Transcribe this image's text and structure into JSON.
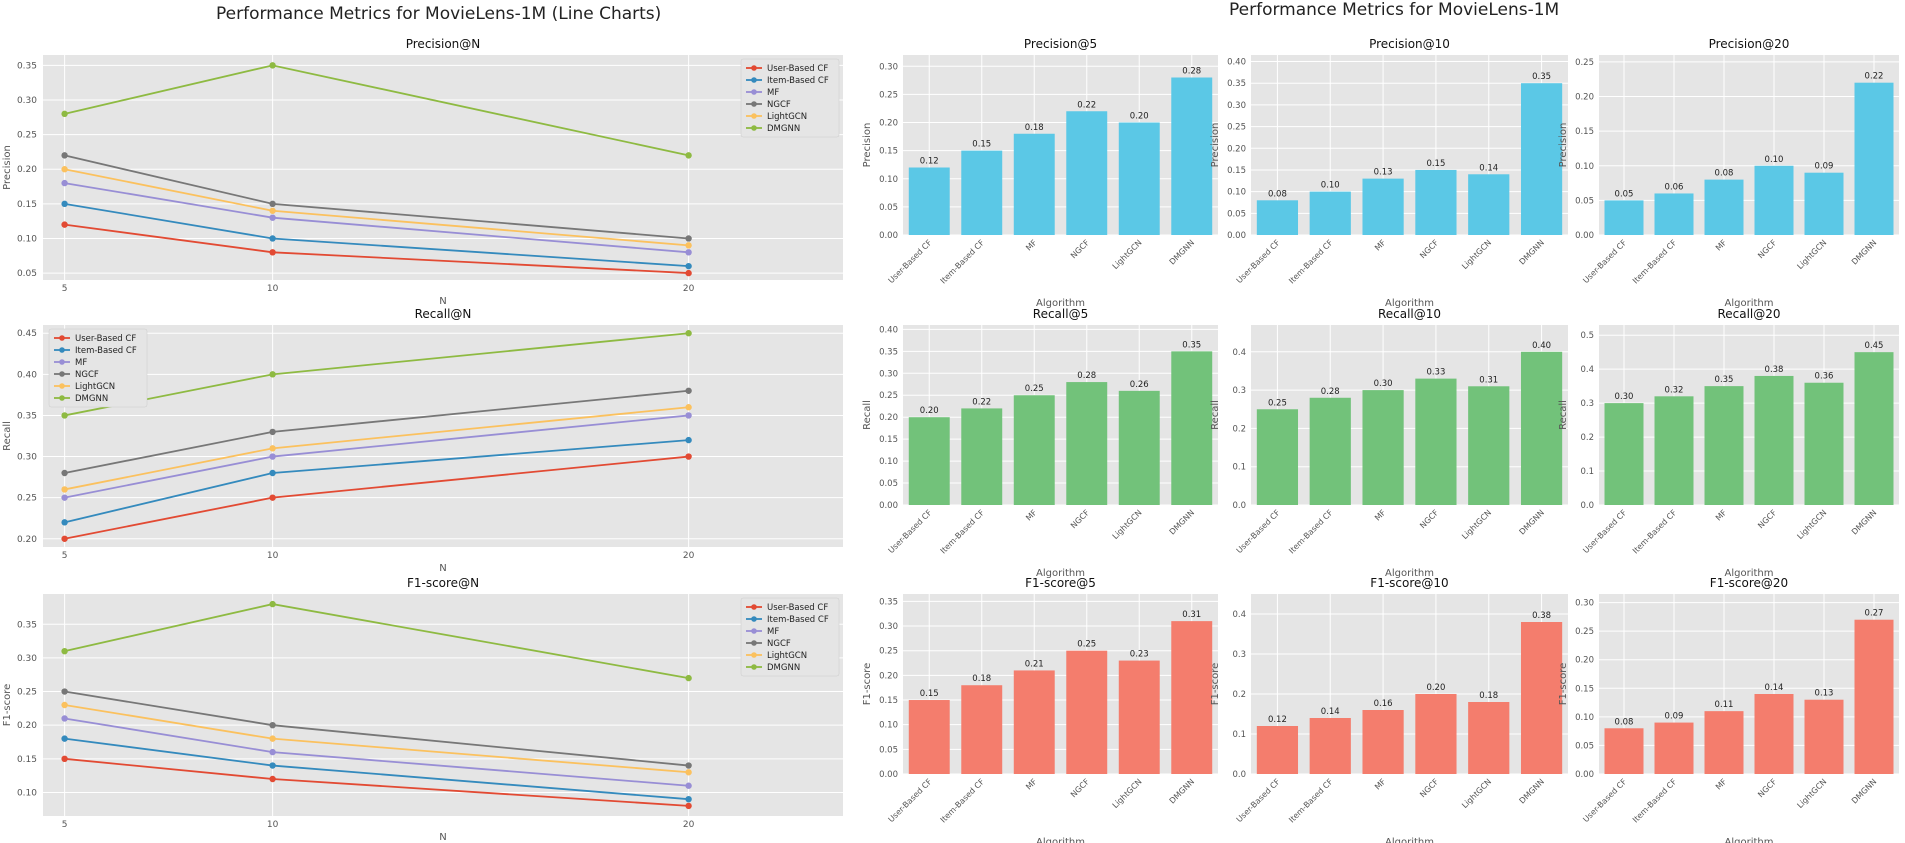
{
  "left_title": "Performance Metrics for MovieLens-1M (Line Charts)",
  "right_title": "Performance Metrics for MovieLens-1M",
  "chart_data": [
    {
      "type": "line",
      "title": "Precision@N",
      "xlabel": "N",
      "ylabel": "Precision",
      "x": [
        5,
        10,
        20
      ],
      "ylim": [
        0.04,
        0.365
      ],
      "yticks": [
        0.05,
        0.1,
        0.15,
        0.2,
        0.25,
        0.3,
        0.35
      ],
      "legend": "top-right",
      "series": [
        {
          "name": "User-Based CF",
          "color": "#E24A33",
          "values": [
            0.12,
            0.08,
            0.05
          ]
        },
        {
          "name": "Item-Based CF",
          "color": "#348ABD",
          "values": [
            0.15,
            0.1,
            0.06
          ]
        },
        {
          "name": "MF",
          "color": "#988ED5",
          "values": [
            0.18,
            0.13,
            0.08
          ]
        },
        {
          "name": "NGCF",
          "color": "#777777",
          "values": [
            0.22,
            0.15,
            0.1
          ]
        },
        {
          "name": "LightGCN",
          "color": "#FBC15E",
          "values": [
            0.2,
            0.14,
            0.09
          ]
        },
        {
          "name": "DMGNN",
          "color": "#8EBA42",
          "values": [
            0.28,
            0.35,
            0.22
          ]
        }
      ]
    },
    {
      "type": "line",
      "title": "Recall@N",
      "xlabel": "N",
      "ylabel": "Recall",
      "x": [
        5,
        10,
        20
      ],
      "ylim": [
        0.19,
        0.46
      ],
      "yticks": [
        0.2,
        0.25,
        0.3,
        0.35,
        0.4,
        0.45
      ],
      "legend": "top-left",
      "series": [
        {
          "name": "User-Based CF",
          "color": "#E24A33",
          "values": [
            0.2,
            0.25,
            0.3
          ]
        },
        {
          "name": "Item-Based CF",
          "color": "#348ABD",
          "values": [
            0.22,
            0.28,
            0.32
          ]
        },
        {
          "name": "MF",
          "color": "#988ED5",
          "values": [
            0.25,
            0.3,
            0.35
          ]
        },
        {
          "name": "NGCF",
          "color": "#777777",
          "values": [
            0.28,
            0.33,
            0.38
          ]
        },
        {
          "name": "LightGCN",
          "color": "#FBC15E",
          "values": [
            0.26,
            0.31,
            0.36
          ]
        },
        {
          "name": "DMGNN",
          "color": "#8EBA42",
          "values": [
            0.35,
            0.4,
            0.45
          ]
        }
      ]
    },
    {
      "type": "line",
      "title": "F1-score@N",
      "xlabel": "N",
      "ylabel": "F1-score",
      "x": [
        5,
        10,
        20
      ],
      "ylim": [
        0.065,
        0.395
      ],
      "yticks": [
        0.1,
        0.15,
        0.2,
        0.25,
        0.3,
        0.35
      ],
      "legend": "top-right",
      "series": [
        {
          "name": "User-Based CF",
          "color": "#E24A33",
          "values": [
            0.15,
            0.12,
            0.08
          ]
        },
        {
          "name": "Item-Based CF",
          "color": "#348ABD",
          "values": [
            0.18,
            0.14,
            0.09
          ]
        },
        {
          "name": "MF",
          "color": "#988ED5",
          "values": [
            0.21,
            0.16,
            0.11
          ]
        },
        {
          "name": "NGCF",
          "color": "#777777",
          "values": [
            0.25,
            0.2,
            0.14
          ]
        },
        {
          "name": "LightGCN",
          "color": "#FBC15E",
          "values": [
            0.23,
            0.18,
            0.13
          ]
        },
        {
          "name": "DMGNN",
          "color": "#8EBA42",
          "values": [
            0.31,
            0.38,
            0.27
          ]
        }
      ]
    },
    {
      "type": "bar",
      "title": "Precision@5",
      "xlabel": "Algorithm",
      "ylabel": "Precision",
      "color": "#5BC8E6",
      "categories": [
        "User-Based CF",
        "Item-Based CF",
        "MF",
        "NGCF",
        "LightGCN",
        "DMGNN"
      ],
      "values": [
        0.12,
        0.15,
        0.18,
        0.22,
        0.2,
        0.28
      ],
      "labels": [
        "0.12",
        "0.15",
        "0.18",
        "0.22",
        "0.20",
        "0.28"
      ],
      "ylim": [
        0,
        0.32
      ],
      "yticks": [
        0.0,
        0.05,
        0.1,
        0.15,
        0.2,
        0.25,
        0.3
      ],
      "tickdec": 2
    },
    {
      "type": "bar",
      "title": "Precision@10",
      "xlabel": "Algorithm",
      "ylabel": "Precision",
      "color": "#5BC8E6",
      "categories": [
        "User-Based CF",
        "Item-Based CF",
        "MF",
        "NGCF",
        "LightGCN",
        "DMGNN"
      ],
      "values": [
        0.08,
        0.1,
        0.13,
        0.15,
        0.14,
        0.35
      ],
      "labels": [
        "0.08",
        "0.10",
        "0.13",
        "0.15",
        "0.14",
        "0.35"
      ],
      "ylim": [
        0,
        0.415
      ],
      "yticks": [
        0.0,
        0.05,
        0.1,
        0.15,
        0.2,
        0.25,
        0.3,
        0.35,
        0.4
      ],
      "tickdec": 2
    },
    {
      "type": "bar",
      "title": "Precision@20",
      "xlabel": "Algorithm",
      "ylabel": "Precision",
      "color": "#5BC8E6",
      "categories": [
        "User-Based CF",
        "Item-Based CF",
        "MF",
        "NGCF",
        "LightGCN",
        "DMGNN"
      ],
      "values": [
        0.05,
        0.06,
        0.08,
        0.1,
        0.09,
        0.22
      ],
      "labels": [
        "0.05",
        "0.06",
        "0.08",
        "0.10",
        "0.09",
        "0.22"
      ],
      "ylim": [
        0,
        0.26
      ],
      "yticks": [
        0.0,
        0.05,
        0.1,
        0.15,
        0.2,
        0.25
      ],
      "tickdec": 2
    },
    {
      "type": "bar",
      "title": "Recall@5",
      "xlabel": "Algorithm",
      "ylabel": "Recall",
      "color": "#72C27A",
      "categories": [
        "User-Based CF",
        "Item-Based CF",
        "MF",
        "NGCF",
        "LightGCN",
        "DMGNN"
      ],
      "values": [
        0.2,
        0.22,
        0.25,
        0.28,
        0.26,
        0.35
      ],
      "labels": [
        "0.20",
        "0.22",
        "0.25",
        "0.28",
        "0.26",
        "0.35"
      ],
      "ylim": [
        0,
        0.41
      ],
      "yticks": [
        0.0,
        0.05,
        0.1,
        0.15,
        0.2,
        0.25,
        0.3,
        0.35,
        0.4
      ],
      "tickdec": 2
    },
    {
      "type": "bar",
      "title": "Recall@10",
      "xlabel": "Algorithm",
      "ylabel": "Recall",
      "color": "#72C27A",
      "categories": [
        "User-Based CF",
        "Item-Based CF",
        "MF",
        "NGCF",
        "LightGCN",
        "DMGNN"
      ],
      "values": [
        0.25,
        0.28,
        0.3,
        0.33,
        0.31,
        0.4
      ],
      "labels": [
        "0.25",
        "0.28",
        "0.30",
        "0.33",
        "0.31",
        "0.40"
      ],
      "ylim": [
        0,
        0.47
      ],
      "yticks": [
        0.0,
        0.1,
        0.2,
        0.3,
        0.4
      ],
      "tickdec": 1
    },
    {
      "type": "bar",
      "title": "Recall@20",
      "xlabel": "Algorithm",
      "ylabel": "Recall",
      "color": "#72C27A",
      "categories": [
        "User-Based CF",
        "Item-Based CF",
        "MF",
        "NGCF",
        "LightGCN",
        "DMGNN"
      ],
      "values": [
        0.3,
        0.32,
        0.35,
        0.38,
        0.36,
        0.45
      ],
      "labels": [
        "0.30",
        "0.32",
        "0.35",
        "0.38",
        "0.36",
        "0.45"
      ],
      "ylim": [
        0,
        0.53
      ],
      "yticks": [
        0.0,
        0.1,
        0.2,
        0.3,
        0.4,
        0.5
      ],
      "tickdec": 1
    },
    {
      "type": "bar",
      "title": "F1-score@5",
      "xlabel": "Algorithm",
      "ylabel": "F1-score",
      "color": "#F47D6D",
      "categories": [
        "User-Based CF",
        "Item-Based CF",
        "MF",
        "NGCF",
        "LightGCN",
        "DMGNN"
      ],
      "values": [
        0.15,
        0.18,
        0.21,
        0.25,
        0.23,
        0.31
      ],
      "labels": [
        "0.15",
        "0.18",
        "0.21",
        "0.25",
        "0.23",
        "0.31"
      ],
      "ylim": [
        0,
        0.365
      ],
      "yticks": [
        0.0,
        0.05,
        0.1,
        0.15,
        0.2,
        0.25,
        0.3,
        0.35
      ],
      "tickdec": 2
    },
    {
      "type": "bar",
      "title": "F1-score@10",
      "xlabel": "Algorithm",
      "ylabel": "F1-score",
      "color": "#F47D6D",
      "categories": [
        "User-Based CF",
        "Item-Based CF",
        "MF",
        "NGCF",
        "LightGCN",
        "DMGNN"
      ],
      "values": [
        0.12,
        0.14,
        0.16,
        0.2,
        0.18,
        0.38
      ],
      "labels": [
        "0.12",
        "0.14",
        "0.16",
        "0.20",
        "0.18",
        "0.38"
      ],
      "ylim": [
        0,
        0.45
      ],
      "yticks": [
        0.0,
        0.1,
        0.2,
        0.3,
        0.4
      ],
      "tickdec": 1
    },
    {
      "type": "bar",
      "title": "F1-score@20",
      "xlabel": "Algorithm",
      "ylabel": "F1-score",
      "color": "#F47D6D",
      "categories": [
        "User-Based CF",
        "Item-Based CF",
        "MF",
        "NGCF",
        "LightGCN",
        "DMGNN"
      ],
      "values": [
        0.08,
        0.09,
        0.11,
        0.14,
        0.13,
        0.27
      ],
      "labels": [
        "0.08",
        "0.09",
        "0.11",
        "0.14",
        "0.13",
        "0.27"
      ],
      "ylim": [
        0,
        0.315
      ],
      "yticks": [
        0.0,
        0.05,
        0.1,
        0.15,
        0.2,
        0.25,
        0.3
      ],
      "tickdec": 2
    }
  ]
}
